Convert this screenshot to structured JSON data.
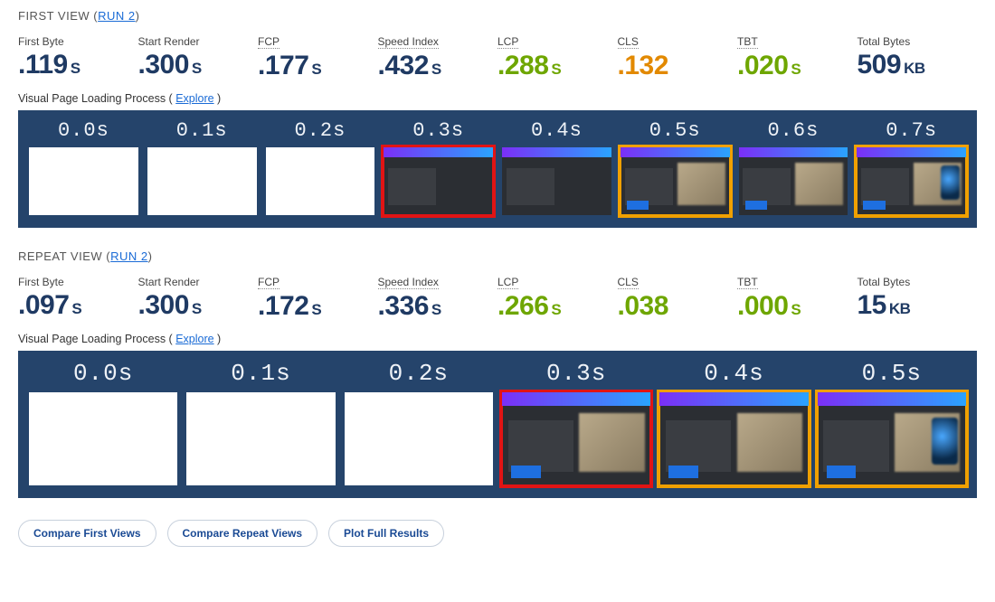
{
  "views": [
    {
      "id": "first-view",
      "title_prefix": "FIRST VIEW",
      "run_label": "RUN 2",
      "metrics": [
        {
          "label": "First Byte",
          "value": ".119",
          "unit": "S",
          "underline": false,
          "tone": "normal"
        },
        {
          "label": "Start Render",
          "value": ".300",
          "unit": "S",
          "underline": false,
          "tone": "normal"
        },
        {
          "label": "FCP",
          "value": ".177",
          "unit": "S",
          "underline": true,
          "tone": "normal"
        },
        {
          "label": "Speed Index",
          "value": ".432",
          "unit": "S",
          "underline": true,
          "tone": "normal"
        },
        {
          "label": "LCP",
          "value": ".288",
          "unit": "S",
          "underline": true,
          "tone": "good"
        },
        {
          "label": "CLS",
          "value": ".132",
          "unit": "",
          "underline": true,
          "tone": "warn"
        },
        {
          "label": "TBT",
          "value": ".020",
          "unit": "S",
          "underline": true,
          "tone": "good"
        },
        {
          "label": "Total Bytes",
          "value": "509",
          "unit": "KB",
          "underline": false,
          "tone": "normal"
        }
      ],
      "vpl_label": "Visual Page Loading Process",
      "vpl_explore": "Explore",
      "filmstrip": [
        {
          "time": "0.0s",
          "state": "blank",
          "border": ""
        },
        {
          "time": "0.1s",
          "state": "blank",
          "border": ""
        },
        {
          "time": "0.2s",
          "state": "blank",
          "border": ""
        },
        {
          "time": "0.3s",
          "state": "partial",
          "border": "red"
        },
        {
          "time": "0.4s",
          "state": "partial",
          "border": ""
        },
        {
          "time": "0.5s",
          "state": "full",
          "border": "orange"
        },
        {
          "time": "0.6s",
          "state": "full",
          "border": ""
        },
        {
          "time": "0.7s",
          "state": "loaded",
          "border": "orange"
        }
      ]
    },
    {
      "id": "repeat-view",
      "title_prefix": "REPEAT VIEW",
      "run_label": "RUN 2",
      "metrics": [
        {
          "label": "First Byte",
          "value": ".097",
          "unit": "S",
          "underline": false,
          "tone": "normal"
        },
        {
          "label": "Start Render",
          "value": ".300",
          "unit": "S",
          "underline": false,
          "tone": "normal"
        },
        {
          "label": "FCP",
          "value": ".172",
          "unit": "S",
          "underline": true,
          "tone": "normal"
        },
        {
          "label": "Speed Index",
          "value": ".336",
          "unit": "S",
          "underline": true,
          "tone": "normal"
        },
        {
          "label": "LCP",
          "value": ".266",
          "unit": "S",
          "underline": true,
          "tone": "good"
        },
        {
          "label": "CLS",
          "value": ".038",
          "unit": "",
          "underline": true,
          "tone": "good"
        },
        {
          "label": "TBT",
          "value": ".000",
          "unit": "S",
          "underline": true,
          "tone": "good"
        },
        {
          "label": "Total Bytes",
          "value": "15",
          "unit": "KB",
          "underline": false,
          "tone": "normal"
        }
      ],
      "vpl_label": "Visual Page Loading Process",
      "vpl_explore": "Explore",
      "filmstrip": [
        {
          "time": "0.0s",
          "state": "blank",
          "border": ""
        },
        {
          "time": "0.1s",
          "state": "blank",
          "border": ""
        },
        {
          "time": "0.2s",
          "state": "blank",
          "border": ""
        },
        {
          "time": "0.3s",
          "state": "full",
          "border": "red"
        },
        {
          "time": "0.4s",
          "state": "full",
          "border": "orange"
        },
        {
          "time": "0.5s",
          "state": "loaded",
          "border": "orange"
        }
      ]
    }
  ],
  "buttons": {
    "compare_first": "Compare First Views",
    "compare_repeat": "Compare Repeat Views",
    "plot_full": "Plot Full Results"
  },
  "colors": {
    "navy": "#1f3a63",
    "good": "#6ea600",
    "warn": "#e28900",
    "link": "#1a6bd6",
    "filmstrip_bg": "#25446b",
    "border_red": "#e11414",
    "border_orange": "#f0a000"
  }
}
